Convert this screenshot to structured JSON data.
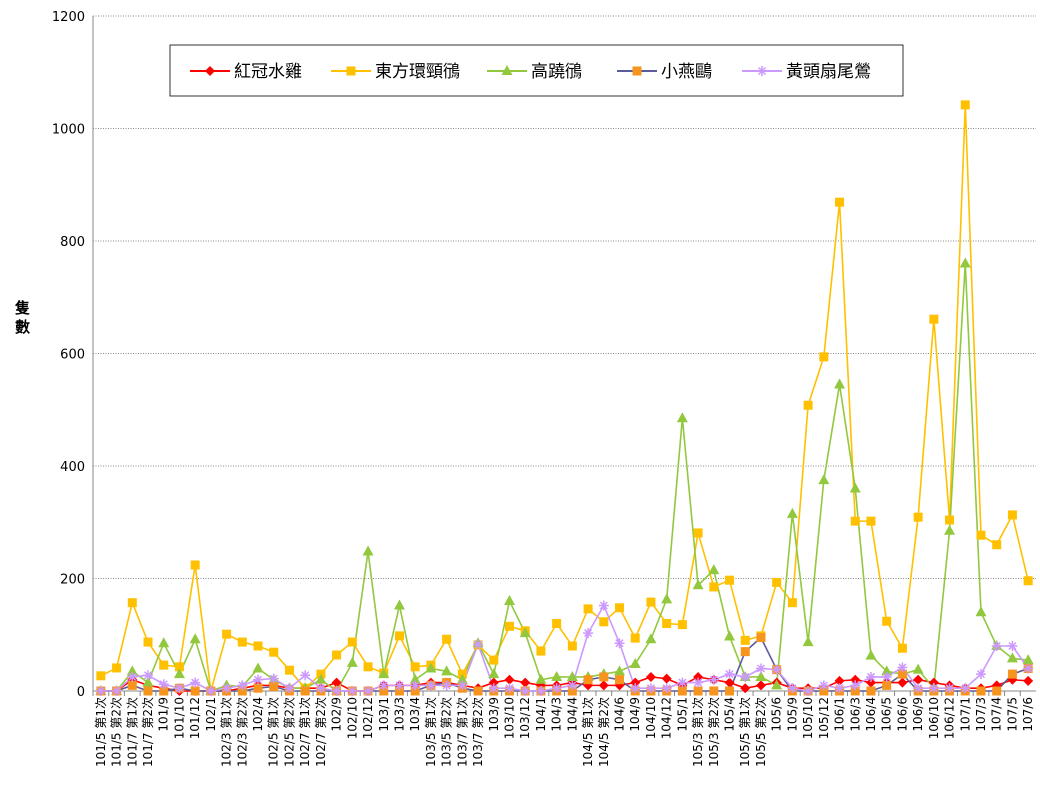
{
  "chart_data": {
    "type": "line",
    "y_label": "隻數",
    "categories": [
      "101/5 第1次",
      "101/5 第2次",
      "101/7 第1次",
      "101/7 第2次",
      "101/9",
      "101/10",
      "101/12",
      "102/1",
      "102/3 第1次",
      "102/3 第2次",
      "102/4",
      "102/5 第1次",
      "102/5 第2次",
      "102/7 第1次",
      "102/7 第2次",
      "102/9",
      "102/10",
      "102/12",
      "103/1",
      "103/3",
      "103/4",
      "103/5 第1次",
      "103/5 第2次",
      "103/7 第1次",
      "103/7 第2次",
      "103/9",
      "103/10",
      "103/12",
      "104/1",
      "104/3",
      "104/4",
      "104/5 第1次",
      "104/5 第2次",
      "104/6",
      "104/9",
      "104/10",
      "104/12",
      "105/1",
      "105/3 第1次",
      "105/3 第2次",
      "105/4",
      "105/5 第1次",
      "105/5 第2次",
      "105/6",
      "105/9",
      "105/10",
      "105/12",
      "106/1",
      "106/3",
      "106/4",
      "106/5",
      "106/6",
      "106/9",
      "106/10",
      "106/12",
      "107/1",
      "107/3",
      "107/4",
      "107/5",
      "107/6"
    ],
    "series": [
      {
        "name": "紅冠水雞",
        "color": "#FF0000",
        "line_color": "#FF0000",
        "marker": "diamond",
        "values": [
          0,
          0,
          20,
          10,
          5,
          0,
          0,
          0,
          0,
          5,
          10,
          10,
          5,
          5,
          5,
          15,
          0,
          0,
          10,
          10,
          10,
          15,
          15,
          10,
          5,
          15,
          20,
          15,
          10,
          10,
          15,
          10,
          10,
          10,
          15,
          25,
          22,
          10,
          25,
          20,
          15,
          5,
          10,
          15,
          5,
          5,
          5,
          18,
          20,
          15,
          15,
          15,
          20,
          15,
          10,
          5,
          5,
          10,
          20,
          18
        ]
      },
      {
        "name": "東方環頸鴴",
        "color": "#FFC000",
        "line_color": "#FFC000",
        "marker": "square",
        "values": [
          27,
          41,
          157,
          87,
          46,
          43,
          224,
          0,
          101,
          87,
          80,
          69,
          37,
          5,
          30,
          64,
          87,
          43,
          32,
          98,
          43,
          46,
          92,
          30,
          82,
          55,
          115,
          107,
          71,
          120,
          80,
          146,
          123,
          148,
          94,
          158,
          120,
          118,
          281,
          185,
          197,
          90,
          98,
          193,
          157,
          508,
          594,
          869,
          302,
          302,
          124,
          76,
          309,
          661,
          304,
          1042,
          277,
          260,
          313,
          196
        ]
      },
      {
        "name": "高蹺鴴",
        "color": "#92C83E",
        "line_color": "#92C83E",
        "marker": "triangle",
        "values": [
          0,
          0,
          35,
          15,
          85,
          30,
          92,
          0,
          10,
          8,
          40,
          20,
          5,
          5,
          20,
          0,
          50,
          248,
          30,
          152,
          20,
          40,
          35,
          20,
          85,
          30,
          160,
          103,
          20,
          25,
          25,
          25,
          30,
          35,
          48,
          92,
          163,
          485,
          188,
          215,
          97,
          25,
          25,
          10,
          315,
          87,
          375,
          545,
          360,
          63,
          35,
          30,
          38,
          5,
          285,
          760,
          140,
          80,
          58,
          55
        ]
      },
      {
        "name": "小燕鷗",
        "color": "#F7941D",
        "line_color": "#5B5B9B",
        "marker": "square",
        "values": [
          0,
          0,
          10,
          0,
          0,
          5,
          0,
          0,
          0,
          0,
          5,
          8,
          0,
          0,
          0,
          0,
          0,
          0,
          0,
          0,
          0,
          10,
          15,
          5,
          0,
          0,
          0,
          0,
          0,
          0,
          0,
          20,
          25,
          20,
          0,
          0,
          0,
          0,
          0,
          0,
          0,
          70,
          95,
          38,
          0,
          0,
          0,
          0,
          0,
          0,
          10,
          30,
          0,
          0,
          0,
          0,
          0,
          0,
          30,
          40
        ]
      },
      {
        "name": "黃頭扇尾鶯",
        "color": "#CC99FF",
        "line_color": "#CC99FF",
        "marker": "star",
        "values": [
          0,
          0,
          25,
          28,
          12,
          5,
          15,
          0,
          5,
          10,
          20,
          22,
          5,
          28,
          5,
          0,
          0,
          0,
          10,
          10,
          10,
          10,
          10,
          10,
          83,
          5,
          5,
          0,
          0,
          5,
          10,
          103,
          152,
          85,
          5,
          5,
          5,
          15,
          15,
          20,
          30,
          25,
          40,
          38,
          5,
          0,
          10,
          5,
          10,
          25,
          25,
          42,
          5,
          5,
          5,
          5,
          30,
          80,
          80,
          40
        ]
      }
    ],
    "ylim": [
      0,
      1200
    ],
    "yticks": [
      0,
      200,
      400,
      600,
      800,
      1000,
      1200
    ],
    "grid": true,
    "legend": "top"
  }
}
